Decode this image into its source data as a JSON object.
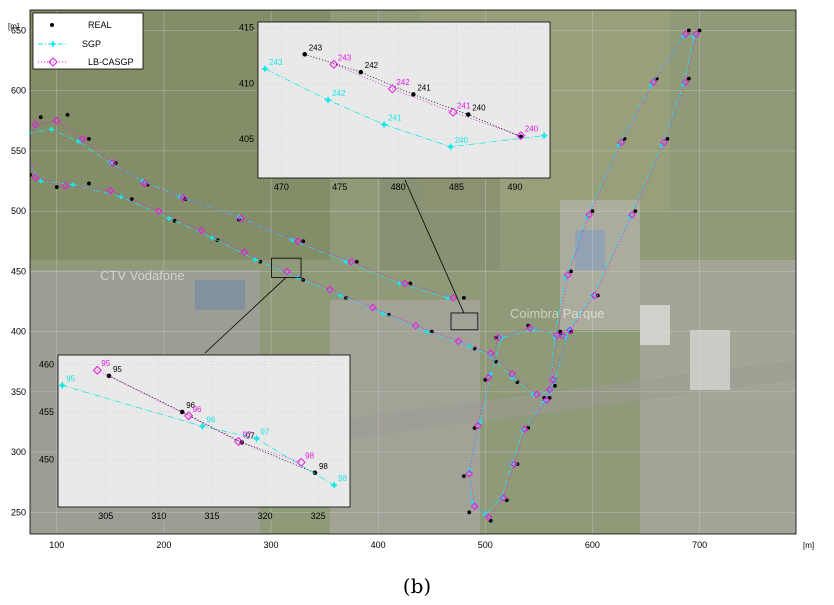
{
  "caption": "(b)",
  "colors": {
    "real": "#000000",
    "sgp": "#19e6e6",
    "lbcasgp": "#e619e6",
    "axis": "#000000",
    "inset_bg": "#e9e9e9",
    "grid": "#c8c8c8"
  },
  "background_image": "aerial-satellite-photo",
  "map_watermarks": [
    "CTV Vodafone",
    "Coimbra Parque"
  ],
  "chart_data": [
    {
      "type": "line",
      "xunit": "[m]",
      "yunit": "[m]",
      "xlim": [
        75,
        790
      ],
      "ylim": [
        232,
        667
      ],
      "xticks": [
        100,
        200,
        300,
        400,
        500,
        600,
        700
      ],
      "yticks": [
        250,
        300,
        350,
        400,
        450,
        500,
        550,
        600,
        650
      ],
      "grid": true,
      "legend": {
        "position": "top-left",
        "entries": [
          {
            "label": "REAL",
            "marker": "dot",
            "line": "none"
          },
          {
            "label": "SGP",
            "marker": "star",
            "line": "dash-dot"
          },
          {
            "label": "LB-CASGP",
            "marker": "diamond",
            "line": "dotted"
          }
        ]
      },
      "series": [
        {
          "name": "REAL",
          "points": [
            [
              480,
              428
            ],
            [
              430,
              440
            ],
            [
              380,
              458
            ],
            [
              330,
              475
            ],
            [
              270,
              493
            ],
            [
              220,
              510
            ],
            [
              185,
              522
            ],
            [
              155,
              540
            ],
            [
              130,
              560
            ],
            [
              110,
              580
            ],
            [
              85,
              578
            ],
            [
              70,
              560
            ],
            [
              75,
              530
            ],
            [
              100,
              520
            ],
            [
              130,
              523
            ],
            [
              170,
              510
            ],
            [
              210,
              492
            ],
            [
              250,
              476
            ],
            [
              290,
              458
            ],
            [
              330,
              443
            ],
            [
              370,
              428
            ],
            [
              410,
              414
            ],
            [
              450,
              400
            ],
            [
              490,
              386
            ],
            [
              510,
              375
            ],
            [
              530,
              358
            ],
            [
              555,
              345
            ],
            [
              565,
              355
            ],
            [
              570,
              400
            ],
            [
              580,
              450
            ],
            [
              600,
              500
            ],
            [
              630,
              560
            ],
            [
              660,
              610
            ],
            [
              690,
              650
            ],
            [
              700,
              650
            ],
            [
              690,
              610
            ],
            [
              670,
              560
            ],
            [
              640,
              500
            ],
            [
              605,
              430
            ],
            [
              580,
              400
            ],
            [
              565,
              360
            ],
            [
              560,
              345
            ],
            [
              540,
              320
            ],
            [
              530,
              290
            ],
            [
              520,
              260
            ],
            [
              505,
              243
            ],
            [
              485,
              250
            ],
            [
              480,
              280
            ],
            [
              490,
              320
            ],
            [
              500,
              360
            ],
            [
              510,
              395
            ],
            [
              540,
              405
            ],
            [
              570,
              398
            ]
          ]
        },
        {
          "name": "SGP",
          "points": [
            [
              465,
              428
            ],
            [
              420,
              440
            ],
            [
              370,
              458
            ],
            [
              320,
              476
            ],
            [
              270,
              495
            ],
            [
              215,
              512
            ],
            [
              180,
              525
            ],
            [
              150,
              540
            ],
            [
              120,
              558
            ],
            [
              95,
              568
            ],
            [
              75,
              565
            ],
            [
              70,
              545
            ],
            [
              85,
              525
            ],
            [
              115,
              522
            ],
            [
              160,
              512
            ],
            [
              205,
              494
            ],
            [
              245,
              478
            ],
            [
              285,
              460
            ],
            [
              325,
              445
            ],
            [
              365,
              430
            ],
            [
              405,
              415
            ],
            [
              445,
              400
            ],
            [
              485,
              388
            ],
            [
              505,
              380
            ],
            [
              525,
              362
            ],
            [
              545,
              348
            ],
            [
              560,
              350
            ],
            [
              565,
              395
            ],
            [
              575,
              445
            ],
            [
              595,
              495
            ],
            [
              625,
              555
            ],
            [
              655,
              605
            ],
            [
              685,
              645
            ],
            [
              695,
              645
            ],
            [
              685,
              605
            ],
            [
              665,
              555
            ],
            [
              635,
              495
            ],
            [
              600,
              430
            ],
            [
              578,
              402
            ],
            [
              565,
              360
            ],
            [
              555,
              342
            ],
            [
              535,
              318
            ],
            [
              525,
              290
            ],
            [
              515,
              262
            ],
            [
              500,
              248
            ],
            [
              488,
              258
            ],
            [
              485,
              285
            ],
            [
              495,
              325
            ],
            [
              505,
              365
            ],
            [
              515,
              395
            ],
            [
              545,
              402
            ],
            [
              575,
              396
            ]
          ]
        },
        {
          "name": "LB-CASGP",
          "points": [
            [
              470,
              428
            ],
            [
              425,
              440
            ],
            [
              375,
              458
            ],
            [
              325,
              475
            ],
            [
              272,
              494
            ],
            [
              218,
              511
            ],
            [
              182,
              523
            ],
            [
              152,
              540
            ],
            [
              124,
              560
            ],
            [
              100,
              575
            ],
            [
              80,
              572
            ],
            [
              72,
              553
            ],
            [
              80,
              528
            ],
            [
              108,
              521
            ],
            [
              150,
              517
            ],
            [
              195,
              500
            ],
            [
              235,
              484
            ],
            [
              275,
              466
            ],
            [
              315,
              450
            ],
            [
              355,
              435
            ],
            [
              395,
              420
            ],
            [
              435,
              405
            ],
            [
              475,
              392
            ],
            [
              505,
              382
            ],
            [
              525,
              365
            ],
            [
              548,
              348
            ],
            [
              560,
              352
            ],
            [
              567,
              397
            ],
            [
              577,
              447
            ],
            [
              597,
              497
            ],
            [
              627,
              557
            ],
            [
              657,
              607
            ],
            [
              687,
              647
            ],
            [
              697,
              647
            ],
            [
              687,
              607
            ],
            [
              667,
              557
            ],
            [
              637,
              497
            ],
            [
              602,
              430
            ],
            [
              579,
              401
            ],
            [
              563,
              360
            ],
            [
              557,
              343
            ],
            [
              537,
              319
            ],
            [
              527,
              290
            ],
            [
              517,
              262
            ],
            [
              503,
              246
            ],
            [
              490,
              255
            ],
            [
              485,
              282
            ],
            [
              493,
              322
            ],
            [
              503,
              362
            ],
            [
              512,
              395
            ],
            [
              542,
              403
            ],
            [
              572,
              397
            ]
          ]
        }
      ]
    },
    {
      "type": "line",
      "inset": "top",
      "xlim": [
        468,
        493
      ],
      "ylim": [
        401.5,
        415.5
      ],
      "xticks": [
        470,
        475,
        480,
        485,
        490
      ],
      "yticks": [
        405,
        410,
        415
      ],
      "series": [
        {
          "name": "REAL",
          "labels": [
            "243",
            "242",
            "241",
            "240"
          ],
          "points": [
            [
              472,
              412.6
            ],
            [
              476.8,
              411
            ],
            [
              481.3,
              409
            ],
            [
              486,
              407.2
            ],
            [
              490.5,
              405.2
            ]
          ]
        },
        {
          "name": "SGP",
          "labels": [
            "243",
            "242",
            "241",
            "240"
          ],
          "points": [
            [
              468.6,
              411.3
            ],
            [
              474,
              408.5
            ],
            [
              478.8,
              406.3
            ],
            [
              484.5,
              404.3
            ],
            [
              492.5,
              405.3
            ]
          ]
        },
        {
          "name": "LB-CASGP",
          "labels": [
            "243",
            "242",
            "241",
            "240"
          ],
          "points": [
            [
              474.5,
              411.7
            ],
            [
              479.5,
              409.5
            ],
            [
              484.7,
              407.4
            ],
            [
              490.5,
              405.3
            ]
          ]
        }
      ]
    },
    {
      "type": "line",
      "inset": "bottom",
      "xlim": [
        300.5,
        328
      ],
      "ylim": [
        445,
        461
      ],
      "xticks": [
        305,
        310,
        315,
        320,
        325
      ],
      "yticks": [
        450,
        455,
        460
      ],
      "series": [
        {
          "name": "REAL",
          "labels": [
            "95",
            "96",
            "97",
            "98"
          ],
          "points": [
            [
              305.3,
              458.8
            ],
            [
              312.2,
              455
            ],
            [
              317.8,
              451.8
            ],
            [
              324.7,
              448.6
            ]
          ]
        },
        {
          "name": "SGP",
          "labels": [
            "95",
            "96",
            "97",
            "98"
          ],
          "points": [
            [
              300.9,
              457.8
            ],
            [
              314.1,
              453.5
            ],
            [
              319.2,
              452.2
            ],
            [
              326.5,
              447.3
            ]
          ]
        },
        {
          "name": "LB-CASGP",
          "labels": [
            "95",
            "96",
            "97",
            "98"
          ],
          "points": [
            [
              304.2,
              459.4
            ],
            [
              312.8,
              454.6
            ],
            [
              317.5,
              451.9
            ],
            [
              323.4,
              449.7
            ]
          ]
        }
      ]
    }
  ]
}
